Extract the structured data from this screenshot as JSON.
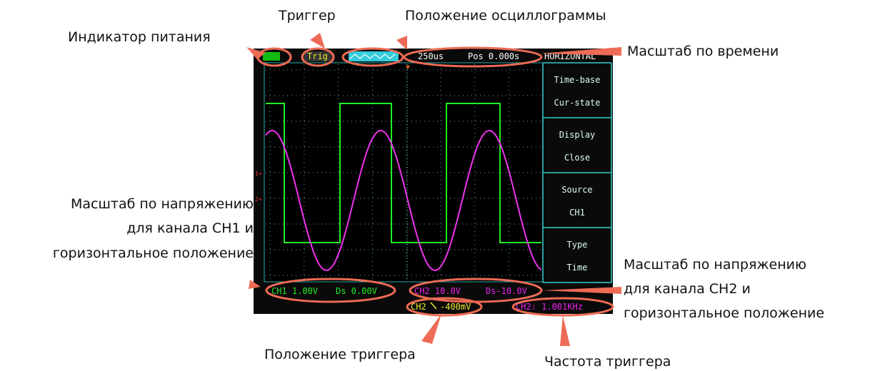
{
  "annotations": {
    "trigger": "Триггер",
    "waveform_position": "Положение осциллограммы",
    "power_indicator": "Индикатор питания",
    "time_scale": "Масштаб по времени",
    "ch1_scale": [
      "Масштаб по напряжению",
      "для канала CH1 и",
      "горизонтальное положение"
    ],
    "ch2_scale": [
      "Масштаб по напряжению",
      "для канала CH2 и",
      "горизонтальное положение"
    ],
    "trigger_position": "Положение триггера",
    "trigger_frequency": "Частота триггера"
  },
  "screen": {
    "top_bar": {
      "trig": "Trig",
      "time_base": "250us",
      "position": "Pos 0.000s",
      "menu_title": "HORIZONTAL"
    },
    "menu": [
      [
        "Time-base",
        "Cur-state"
      ],
      [
        "Display",
        "Close"
      ],
      [
        "Source",
        "CH1"
      ],
      [
        "Type",
        "Time"
      ]
    ],
    "markers": [
      "1+",
      "2+"
    ],
    "bottom_bar": {
      "ch1_scale": "CH1 1.00V",
      "ch1_offset": "Ds 0.00V",
      "ch2_scale": "CH2 10.0V",
      "ch2_offset": "Ds-10.0V",
      "trigger_source": "CH2",
      "trigger_level": "-400mV",
      "frequency": "CH2: 1.001KHz"
    }
  }
}
